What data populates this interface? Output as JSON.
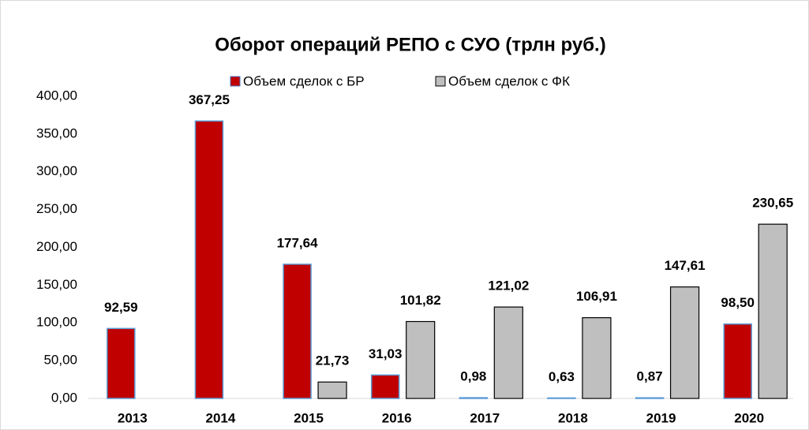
{
  "chart_data": {
    "type": "bar",
    "title": "Оборот операций РЕПО с СУО (трлн руб.)",
    "categories": [
      "2013",
      "2014",
      "2015",
      "2016",
      "2017",
      "2018",
      "2019",
      "2020"
    ],
    "series": [
      {
        "name": "Объем сделок с БР",
        "color": "#c00000",
        "values": [
          92.59,
          367.25,
          177.64,
          31.03,
          0.98,
          0.63,
          0.87,
          98.5
        ],
        "value_labels": [
          "92,59",
          "367,25",
          "177,64",
          "31,03",
          "0,98",
          "0,63",
          "0,87",
          "98,50"
        ]
      },
      {
        "name": "Объем сделок с ФК",
        "color": "#bfbfbf",
        "values": [
          null,
          null,
          21.73,
          101.82,
          121.02,
          106.91,
          147.61,
          230.65
        ],
        "value_labels": [
          null,
          null,
          "21,73",
          "101,82",
          "121,02",
          "106,91",
          "147,61",
          "230,65"
        ]
      }
    ],
    "ylim": [
      0,
      400
    ],
    "yticks": [
      {
        "value": 0,
        "label": "0,00"
      },
      {
        "value": 50,
        "label": "50,00"
      },
      {
        "value": 100,
        "label": "100,00"
      },
      {
        "value": 150,
        "label": "150,00"
      },
      {
        "value": 200,
        "label": "200,00"
      },
      {
        "value": 250,
        "label": "250,00"
      },
      {
        "value": 300,
        "label": "300,00"
      },
      {
        "value": 350,
        "label": "350,00"
      },
      {
        "value": 400,
        "label": "400,00"
      }
    ],
    "legend": "top"
  }
}
